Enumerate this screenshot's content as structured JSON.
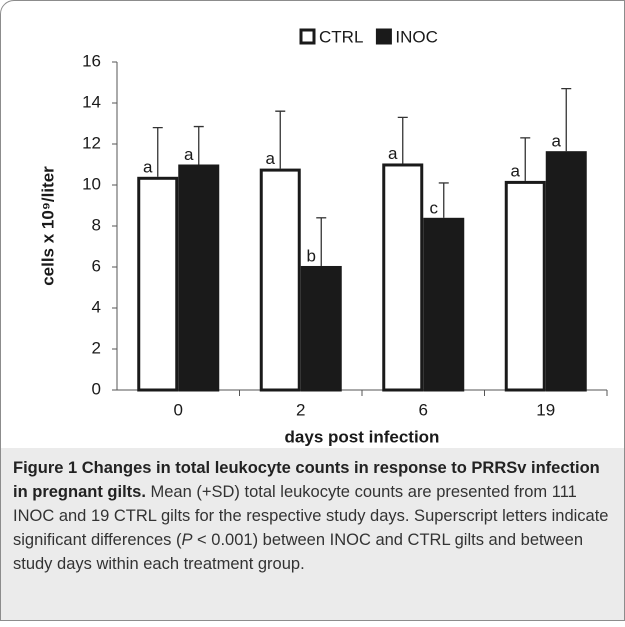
{
  "chart_data": {
    "type": "bar",
    "xlabel": "days post infection",
    "ylabel": "cells x 10⁹/liter",
    "categories": [
      "0",
      "2",
      "6",
      "19"
    ],
    "series": [
      {
        "name": "CTRL",
        "color": "#ffffff",
        "values": [
          10.4,
          10.8,
          11.05,
          10.2
        ],
        "errors": [
          2.4,
          2.8,
          2.25,
          2.1
        ],
        "annotations": [
          "a",
          "a",
          "a",
          "a"
        ]
      },
      {
        "name": "INOC",
        "color": "#1a1a1a",
        "values": [
          11.0,
          6.05,
          8.4,
          11.65
        ],
        "errors": [
          1.85,
          2.35,
          1.7,
          3.05
        ],
        "annotations": [
          "a",
          "b",
          "c",
          "a"
        ]
      }
    ],
    "ylim": [
      0,
      16
    ],
    "yticks": [
      0,
      2,
      4,
      6,
      8,
      10,
      12,
      14,
      16
    ],
    "grid": false,
    "legend": "top"
  },
  "caption": {
    "title": "Figure 1 Changes in total leukocyte counts in response to PRRSv infection in pregnant gilts.",
    "text_1": "Mean (+SD) total leukocyte counts are presented from 111 INOC and 19 CTRL gilts for the respective study days. Superscript letters indicate significant differences (",
    "italic": "P",
    "text_2": " < 0.001) between INOC and CTRL gilts and between study days within each treatment group."
  }
}
